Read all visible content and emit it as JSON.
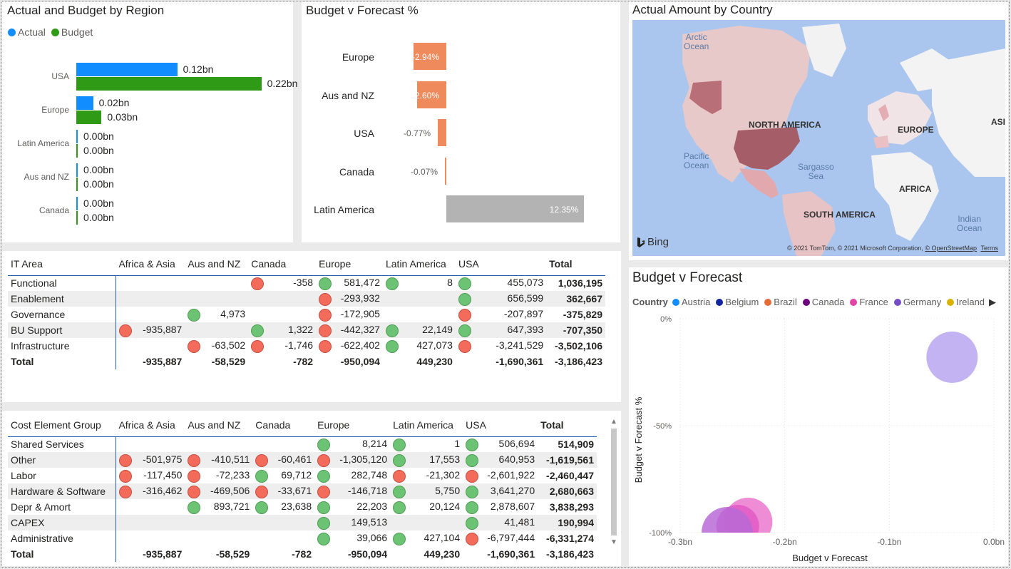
{
  "colors": {
    "actual": "#118dff",
    "budget": "#2f9a16",
    "neg_bar": "#ee8a5c",
    "pos_bar": "#b3b3b3",
    "kpi_green": "#6cc374",
    "kpi_red": "#f26b5b"
  },
  "region_chart": {
    "title": "Actual and Budget by Region",
    "legend": {
      "actual": "Actual",
      "budget": "Budget"
    }
  },
  "bvf_chart": {
    "title": "Budget v Forecast %"
  },
  "map": {
    "title": "Actual Amount by Country",
    "labels": {
      "arctic": "Arctic\nOcean",
      "pacific": "Pacific\nOcean",
      "sargasso": "Sargasso\nSea",
      "indian": "Indian\nOcean",
      "north_america": "NORTH AMERICA",
      "south_america": "SOUTH AMERICA",
      "europe": "EUROPE",
      "africa": "AFRICA",
      "asia": "ASI"
    },
    "bing": "Bing",
    "attribution": "© 2021 TomTom, © 2021 Microsoft Corporation,",
    "osm": "© OpenStreetMap",
    "terms": "Terms"
  },
  "scatter": {
    "title": "Budget v Forecast",
    "legend_title": "Country",
    "legend": [
      {
        "name": "Austria",
        "color": "#118dff"
      },
      {
        "name": "Belgium",
        "color": "#12239e"
      },
      {
        "name": "Brazil",
        "color": "#e66c37"
      },
      {
        "name": "Canada",
        "color": "#6b007b"
      },
      {
        "name": "France",
        "color": "#e044a7"
      },
      {
        "name": "Germany",
        "color": "#744ec2"
      },
      {
        "name": "Ireland",
        "color": "#d9b300"
      }
    ]
  },
  "chart_data": [
    {
      "type": "bar",
      "title": "Actual and Budget by Region",
      "categories": [
        "USA",
        "Europe",
        "Latin America",
        "Aus and NZ",
        "Canada"
      ],
      "series": [
        {
          "name": "Actual",
          "values": [
            0.12,
            0.02,
            0.0,
            0.0,
            0.0
          ],
          "labels": [
            "0.12bn",
            "0.02bn",
            "0.00bn",
            "0.00bn",
            "0.00bn"
          ]
        },
        {
          "name": "Budget",
          "values": [
            0.22,
            0.03,
            0.0,
            0.0,
            0.0
          ],
          "labels": [
            "0.22bn",
            "0.03bn",
            "0.00bn",
            "0.00bn",
            "0.00bn"
          ]
        }
      ],
      "legend": "top-left"
    },
    {
      "type": "bar",
      "title": "Budget v Forecast %",
      "categories": [
        "Europe",
        "Aus and NZ",
        "USA",
        "Canada",
        "Latin America"
      ],
      "values": [
        -2.94,
        -2.6,
        -0.77,
        -0.07,
        12.35
      ],
      "labels": [
        "-2.94%",
        "-2.60%",
        "-0.77%",
        "-0.07%",
        "12.35%"
      ]
    },
    {
      "type": "scatter",
      "title": "Budget v Forecast",
      "xlabel": "Budget v Forecast",
      "ylabel": "Budget v Forecast %",
      "xlim": [
        -0.3,
        0.0
      ],
      "ylim": [
        -100,
        0
      ],
      "x_ticks": [
        "-0.3bn",
        "-0.2bn",
        "-0.1bn",
        "0.0bn"
      ],
      "y_ticks": [
        "0%",
        "-50%",
        "-100%"
      ],
      "points": [
        {
          "country": "Germany",
          "x": -0.04,
          "y": -18,
          "size": 36,
          "color": "#b9a6f0"
        },
        {
          "country": "France",
          "x": -0.235,
          "y": -95,
          "size": 34,
          "color": "#ec78cf"
        },
        {
          "country": "France",
          "x": -0.245,
          "y": -97,
          "size": 30,
          "color": "#e25ac4"
        },
        {
          "country": "Canada",
          "x": -0.255,
          "y": -100,
          "size": 36,
          "color": "#b96ad6"
        }
      ],
      "grid": true
    }
  ],
  "it_matrix": {
    "headers": [
      "IT Area",
      "Africa & Asia",
      "Aus and NZ",
      "Canada",
      "Europe",
      "Latin America",
      "USA",
      "Total"
    ],
    "rows": [
      {
        "label": "Functional",
        "cells": [
          [
            "",
            ""
          ],
          [
            "",
            ""
          ],
          [
            "r",
            "-358"
          ],
          [
            "g",
            "581,472"
          ],
          [
            "g",
            "8"
          ],
          [
            "g",
            "455,073"
          ]
        ],
        "total": "1,036,195"
      },
      {
        "label": "Enablement",
        "cells": [
          [
            "",
            ""
          ],
          [
            "",
            ""
          ],
          [
            "",
            ""
          ],
          [
            "r",
            "-293,932"
          ],
          [
            "",
            ""
          ],
          [
            "g",
            "656,599"
          ]
        ],
        "total": "362,667"
      },
      {
        "label": "Governance",
        "cells": [
          [
            "",
            ""
          ],
          [
            "g",
            "4,973"
          ],
          [
            "",
            ""
          ],
          [
            "r",
            "-172,905"
          ],
          [
            "",
            ""
          ],
          [
            "r",
            "-207,897"
          ]
        ],
        "total": "-375,829"
      },
      {
        "label": "BU Support",
        "cells": [
          [
            "r",
            "-935,887"
          ],
          [
            "",
            ""
          ],
          [
            "g",
            "1,322"
          ],
          [
            "r",
            "-442,327"
          ],
          [
            "g",
            "22,149"
          ],
          [
            "g",
            "647,393"
          ]
        ],
        "total": "-707,350"
      },
      {
        "label": "Infrastructure",
        "cells": [
          [
            "",
            ""
          ],
          [
            "r",
            "-63,502"
          ],
          [
            "r",
            "-1,746"
          ],
          [
            "r",
            "-622,402"
          ],
          [
            "g",
            "427,073"
          ],
          [
            "r",
            "-3,241,529"
          ]
        ],
        "total": "-3,502,106"
      }
    ],
    "total_row": {
      "label": "Total",
      "values": [
        "-935,887",
        "-58,529",
        "-782",
        "-950,094",
        "449,230",
        "-1,690,361",
        "-3,186,423"
      ]
    }
  },
  "cost_matrix": {
    "headers": [
      "Cost Element Group",
      "Africa & Asia",
      "Aus and NZ",
      "Canada",
      "Europe",
      "Latin America",
      "USA",
      "Total"
    ],
    "rows": [
      {
        "label": "Shared Services",
        "cells": [
          [
            "",
            ""
          ],
          [
            "",
            ""
          ],
          [
            "",
            ""
          ],
          [
            "g",
            "8,214"
          ],
          [
            "g",
            "1"
          ],
          [
            "g",
            "506,694"
          ]
        ],
        "total": "514,909"
      },
      {
        "label": "Other",
        "cells": [
          [
            "r",
            "-501,975"
          ],
          [
            "r",
            "-410,511"
          ],
          [
            "r",
            "-60,461"
          ],
          [
            "r",
            "-1,305,120"
          ],
          [
            "g",
            "17,553"
          ],
          [
            "g",
            "640,953"
          ]
        ],
        "total": "-1,619,561"
      },
      {
        "label": "Labor",
        "cells": [
          [
            "r",
            "-117,450"
          ],
          [
            "r",
            "-72,233"
          ],
          [
            "g",
            "69,712"
          ],
          [
            "g",
            "282,748"
          ],
          [
            "r",
            "-21,302"
          ],
          [
            "r",
            "-2,601,922"
          ]
        ],
        "total": "-2,460,447"
      },
      {
        "label": "Hardware & Software",
        "cells": [
          [
            "r",
            "-316,462"
          ],
          [
            "r",
            "-469,506"
          ],
          [
            "r",
            "-33,671"
          ],
          [
            "r",
            "-146,718"
          ],
          [
            "g",
            "5,750"
          ],
          [
            "g",
            "3,641,270"
          ]
        ],
        "total": "2,680,663"
      },
      {
        "label": "Depr & Amort",
        "cells": [
          [
            "",
            ""
          ],
          [
            "g",
            "893,721"
          ],
          [
            "g",
            "23,638"
          ],
          [
            "g",
            "22,203"
          ],
          [
            "g",
            "20,124"
          ],
          [
            "g",
            "2,878,607"
          ]
        ],
        "total": "3,838,293"
      },
      {
        "label": "CAPEX",
        "cells": [
          [
            "",
            ""
          ],
          [
            "",
            ""
          ],
          [
            "",
            ""
          ],
          [
            "g",
            "149,513"
          ],
          [
            "",
            ""
          ],
          [
            "g",
            "41,481"
          ]
        ],
        "total": "190,994"
      },
      {
        "label": "Administrative",
        "cells": [
          [
            "",
            ""
          ],
          [
            "",
            ""
          ],
          [
            "",
            ""
          ],
          [
            "g",
            "39,066"
          ],
          [
            "g",
            "427,104"
          ],
          [
            "r",
            "-6,797,444"
          ]
        ],
        "total": "-6,331,274"
      }
    ],
    "total_row": {
      "label": "Total",
      "values": [
        "-935,887",
        "-58,529",
        "-782",
        "-950,094",
        "449,230",
        "-1,690,361",
        "-3,186,423"
      ]
    }
  }
}
